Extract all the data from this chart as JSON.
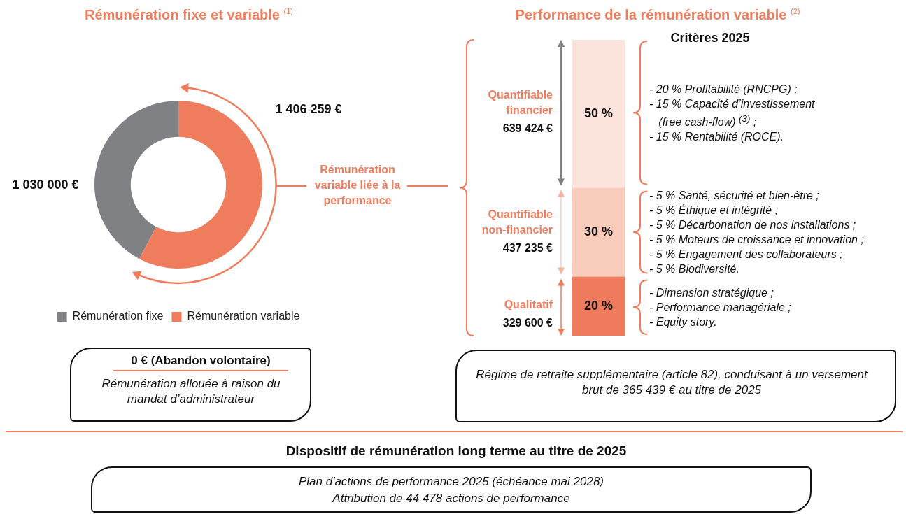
{
  "chart_data": [
    {
      "type": "donut",
      "title": "Rémunération fixe et variable $^{(1)}$",
      "categories": [
        "Rémunération fixe",
        "Rémunération variable"
      ],
      "values": [
        1030000,
        1406259
      ],
      "colors": [
        "#808185",
        "#ef7d5d"
      ],
      "value_labels": [
        "1 030 000 €",
        "1 406 259 €"
      ],
      "legend": "bottom",
      "annotations": [
        "Rémunération variable liée à la performance",
        "0 € (Abandon volontaire)",
        "Rémunération allouée à raison du mandat d’administrateur"
      ]
    },
    {
      "type": "bar",
      "title": "Performance de la rémunération variable $^{(2)}$",
      "categories": [
        null
      ],
      "stacked": true,
      "ylim": [
        0,
        100
      ],
      "tick_labels": false,
      "series": [
        {
          "name": "Qualitatif",
          "color": "#ee7c5c",
          "values": [
            20
          ],
          "value_labels": [
            "20 %"
          ]
        },
        {
          "name": "Quantifiable non-financier",
          "color": "#f9cbbb",
          "values": [
            30
          ],
          "value_labels": [
            "30 %"
          ]
        },
        {
          "name": "Quantifiable financier",
          "color": "#fce3dc",
          "values": [
            50
          ],
          "value_labels": [
            "50 %"
          ]
        }
      ],
      "annotations": [
        "Critères 2025",
        "329 600 €",
        "437 235 €",
        "639 424 €",
        "- Dimension stratégique ;\n- Performance managériale ;\n- Equity story.",
        "- 5 % Santé, sécurité et bien-être ;\n- 5 % Éthique et intégrité ;\n- 5 % Décarbonation de nos installations ;\n- 5 % Moteurs de croissance et innovation ;\n- 5 % Engagement des collaborateurs ;\n- 5 % Biodiversité.",
        "- 20 % Profitabilité (RNCPG) ;\n- 15 % Capacité d’investissement\n   (free cash-flow) $^{(3)}$ ;\n- 15 % Rentabilité (ROCE).",
        "Régime de retraite supplémentaire (article 82), conduisant à un versement brut de 365 439 € au titre de 2025"
      ]
    },
    {
      "type": "other",
      "title": "Dispositif de rémunération long terme au titre de 2025",
      "annotations": [
        "Plan d'actions de performance 2025 (échéance mai 2028)\nAttribution de 44 478 actions de performance"
      ]
    }
  ]
}
